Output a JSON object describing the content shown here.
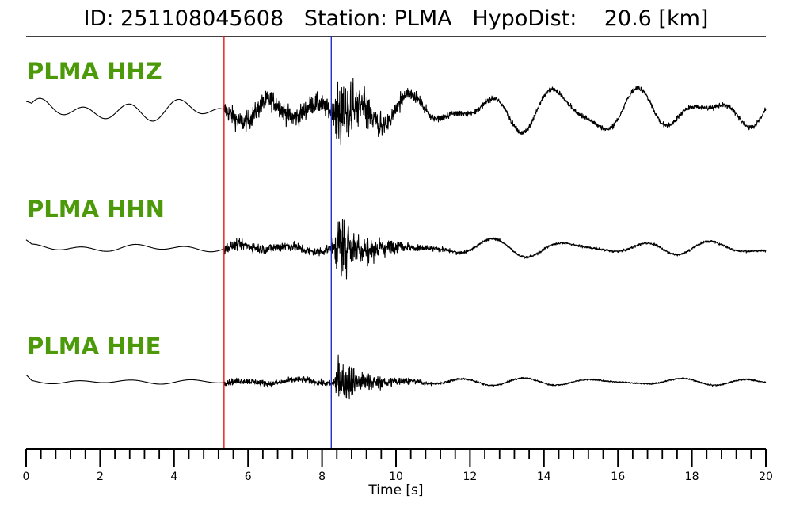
{
  "title": {
    "text": "ID: 251108045608   Station: PLMA   HypoDist:    20.6 [km]"
  },
  "chart_data": {
    "type": "line",
    "title": "ID: 251108045608   Station: PLMA   HypoDist:    20.6 [km]",
    "xlabel": "Time [s]",
    "ylabel": "",
    "xlim": [
      0,
      20
    ],
    "x_ticks": [
      0,
      2,
      4,
      6,
      8,
      10,
      12,
      14,
      16,
      18,
      20
    ],
    "x_minor_tick_step": 0.4,
    "grid": false,
    "picks": [
      {
        "phase": "P",
        "time": 5.35,
        "color": "#e8141c"
      },
      {
        "phase": "S",
        "time": 8.25,
        "color": "#1f2fc8"
      }
    ],
    "series": [
      {
        "name": "PLMA HHZ",
        "color": "#000000",
        "pre_event_waves": [
          [
            1.25,
            9
          ],
          [
            2.0,
            5
          ],
          [
            3.3,
            4
          ]
        ],
        "p_amplitude": 16,
        "s_peak_amplitude": 68,
        "coda_waves": [
          [
            15.9,
            13
          ],
          [
            19.0,
            9
          ],
          [
            18.2,
            6
          ]
        ]
      },
      {
        "name": "PLMA HHN",
        "color": "#000000",
        "pre_event_waves": [
          [
            1.4,
            3
          ],
          [
            3.0,
            2
          ]
        ],
        "p_amplitude": 8,
        "s_peak_amplitude": 60,
        "coda_waves": [
          [
            16.0,
            5
          ],
          [
            17.0,
            3
          ]
        ]
      },
      {
        "name": "PLMA HHE",
        "color": "#000000",
        "pre_event_waves": [
          [
            1.5,
            2
          ],
          [
            2.5,
            1
          ]
        ],
        "p_amplitude": 5,
        "s_peak_amplitude": 42,
        "coda_waves": [
          [
            15.0,
            2
          ],
          [
            18.0,
            2
          ]
        ]
      }
    ]
  }
}
